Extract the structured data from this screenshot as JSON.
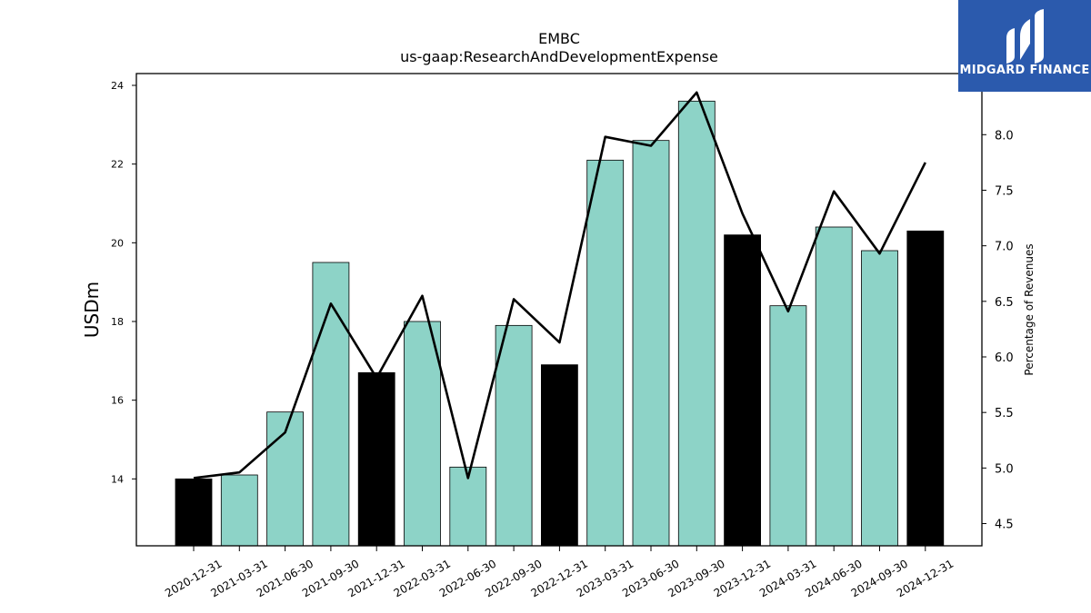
{
  "brand": {
    "name": "MIDGARD FINANCE",
    "bg_color": "#2b5aad"
  },
  "chart_data": {
    "type": "bar",
    "title": "EMBC",
    "subtitle": "us-gaap:ResearchAndDevelopmentExpense",
    "ylabel": "USDm",
    "ylabel_right": "Percentage of Revenues",
    "ylim": [
      12.3,
      24.3
    ],
    "ylim_right": [
      4.3,
      8.55
    ],
    "yticks": [
      14,
      16,
      18,
      20,
      22,
      24
    ],
    "yticks_right": [
      "4.5",
      "5.0",
      "5.5",
      "6.0",
      "6.5",
      "7.0",
      "7.5",
      "8.0"
    ],
    "categories": [
      "2020-12-31",
      "2021-03-31",
      "2021-06-30",
      "2021-09-30",
      "2021-12-31",
      "2022-03-31",
      "2022-06-30",
      "2022-09-30",
      "2022-12-31",
      "2023-03-31",
      "2023-06-30",
      "2023-09-30",
      "2023-12-31",
      "2024-03-31",
      "2024-06-30",
      "2024-09-30",
      "2024-12-31"
    ],
    "series": [
      {
        "type": "bar",
        "axis": "left",
        "values": [
          14.0,
          14.1,
          15.7,
          19.5,
          16.7,
          18.0,
          14.3,
          17.9,
          16.9,
          22.1,
          22.6,
          23.6,
          20.2,
          18.4,
          20.4,
          19.8,
          20.3
        ],
        "annual": [
          true,
          false,
          false,
          false,
          true,
          false,
          false,
          false,
          true,
          false,
          false,
          false,
          true,
          false,
          false,
          false,
          true
        ]
      },
      {
        "type": "line",
        "axis": "right",
        "values": [
          4.91,
          4.96,
          5.32,
          6.48,
          5.81,
          6.55,
          4.91,
          6.52,
          6.13,
          7.98,
          7.9,
          8.38,
          7.29,
          6.41,
          7.49,
          6.93,
          7.75
        ]
      }
    ],
    "colors": {
      "quarter_bar": "#8dd3c7",
      "annual_bar": "#000000",
      "line": "#000000"
    },
    "grid": false,
    "legend": "none"
  }
}
